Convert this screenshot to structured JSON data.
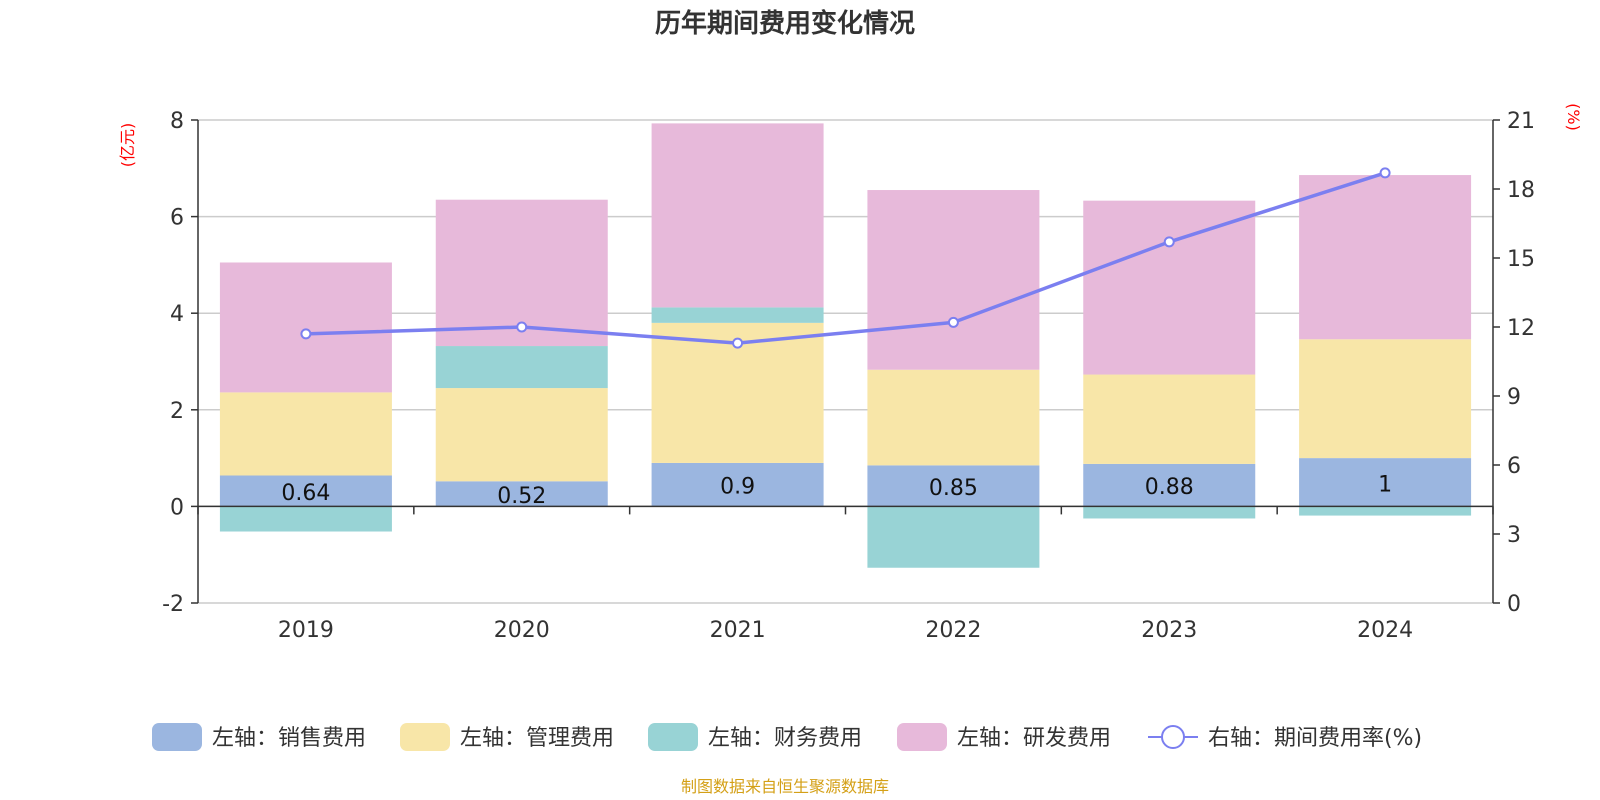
{
  "chart_data": {
    "type": "bar",
    "title": "历年期间费用变化情况",
    "categories": [
      "2019",
      "2020",
      "2021",
      "2022",
      "2023",
      "2024"
    ],
    "left_axis": {
      "unit_label": "(亿元)",
      "ylim": [
        -2,
        8
      ],
      "ticks": [
        "-2",
        "0",
        "2",
        "4",
        "6",
        "8"
      ]
    },
    "right_axis": {
      "unit_label": "(%)",
      "ylim": [
        0,
        21
      ],
      "ticks": [
        "0",
        "3",
        "6",
        "9",
        "12",
        "15",
        "18",
        "21"
      ]
    },
    "series": [
      {
        "name": "左轴：销售费用",
        "axis": "left",
        "kind": "bar",
        "color": "#9bb6e0",
        "values": [
          0.64,
          0.52,
          0.9,
          0.85,
          0.88,
          1.0
        ],
        "labels": [
          "0.64",
          "0.52",
          "0.9",
          "0.85",
          "0.88",
          "1"
        ]
      },
      {
        "name": "左轴：管理费用",
        "axis": "left",
        "kind": "bar",
        "color": "#f8e6a8",
        "values": [
          1.72,
          1.93,
          2.9,
          1.98,
          1.85,
          2.46
        ]
      },
      {
        "name": "左轴：财务费用",
        "axis": "left",
        "kind": "bar",
        "color": "#98d3d5",
        "values": [
          -0.52,
          0.87,
          0.32,
          -1.27,
          -0.25,
          -0.19
        ]
      },
      {
        "name": "左轴：研发费用",
        "axis": "left",
        "kind": "bar",
        "color": "#e7b9da",
        "values": [
          2.69,
          3.03,
          3.81,
          3.72,
          3.6,
          3.4
        ]
      },
      {
        "name": "右轴：期间费用率(%)",
        "axis": "right",
        "kind": "line",
        "color": "#7b7ff0",
        "values": [
          11.7,
          12.0,
          11.3,
          12.2,
          15.7,
          18.7
        ]
      }
    ]
  },
  "source": {
    "text": "制图数据来自恒生聚源数据库",
    "color": "#d4a017"
  }
}
